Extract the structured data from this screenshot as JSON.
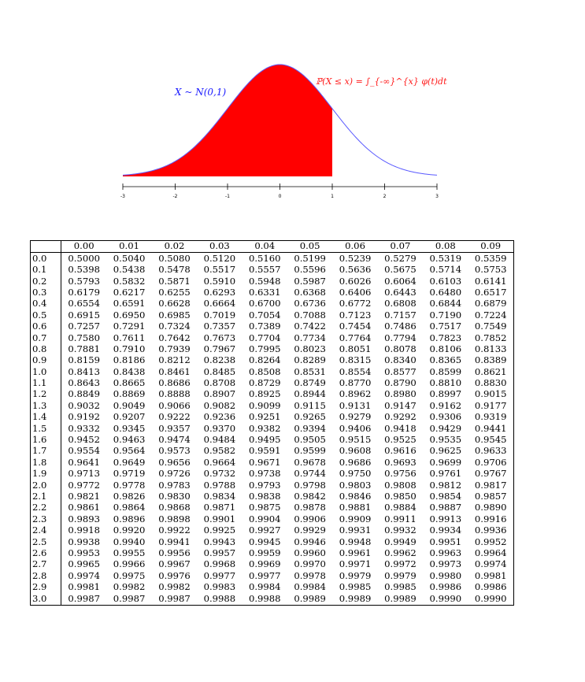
{
  "figure": {
    "left_label": "X ~ N(0,1)",
    "right_label": "ℙ(X ≤ x) = ∫_{-∞}^{x} φ(t)dt",
    "shade_upper": 1,
    "x_ticks": [
      "-3",
      "-2",
      "-1",
      "0",
      "1",
      "2",
      "3"
    ],
    "curve_color": "#5a5aff",
    "fill_color": "#ff0000"
  },
  "table": {
    "columns": [
      "0.00",
      "0.01",
      "0.02",
      "0.03",
      "0.04",
      "0.05",
      "0.06",
      "0.07",
      "0.08",
      "0.09"
    ],
    "rows": [
      {
        "z": "0.0",
        "values": [
          "0.5000",
          "0.5040",
          "0.5080",
          "0.5120",
          "0.5160",
          "0.5199",
          "0.5239",
          "0.5279",
          "0.5319",
          "0.5359"
        ]
      },
      {
        "z": "0.1",
        "values": [
          "0.5398",
          "0.5438",
          "0.5478",
          "0.5517",
          "0.5557",
          "0.5596",
          "0.5636",
          "0.5675",
          "0.5714",
          "0.5753"
        ]
      },
      {
        "z": "0.2",
        "values": [
          "0.5793",
          "0.5832",
          "0.5871",
          "0.5910",
          "0.5948",
          "0.5987",
          "0.6026",
          "0.6064",
          "0.6103",
          "0.6141"
        ]
      },
      {
        "z": "0.3",
        "values": [
          "0.6179",
          "0.6217",
          "0.6255",
          "0.6293",
          "0.6331",
          "0.6368",
          "0.6406",
          "0.6443",
          "0.6480",
          "0.6517"
        ]
      },
      {
        "z": "0.4",
        "values": [
          "0.6554",
          "0.6591",
          "0.6628",
          "0.6664",
          "0.6700",
          "0.6736",
          "0.6772",
          "0.6808",
          "0.6844",
          "0.6879"
        ]
      },
      {
        "z": "0.5",
        "values": [
          "0.6915",
          "0.6950",
          "0.6985",
          "0.7019",
          "0.7054",
          "0.7088",
          "0.7123",
          "0.7157",
          "0.7190",
          "0.7224"
        ]
      },
      {
        "z": "0.6",
        "values": [
          "0.7257",
          "0.7291",
          "0.7324",
          "0.7357",
          "0.7389",
          "0.7422",
          "0.7454",
          "0.7486",
          "0.7517",
          "0.7549"
        ]
      },
      {
        "z": "0.7",
        "values": [
          "0.7580",
          "0.7611",
          "0.7642",
          "0.7673",
          "0.7704",
          "0.7734",
          "0.7764",
          "0.7794",
          "0.7823",
          "0.7852"
        ]
      },
      {
        "z": "0.8",
        "values": [
          "0.7881",
          "0.7910",
          "0.7939",
          "0.7967",
          "0.7995",
          "0.8023",
          "0.8051",
          "0.8078",
          "0.8106",
          "0.8133"
        ]
      },
      {
        "z": "0.9",
        "values": [
          "0.8159",
          "0.8186",
          "0.8212",
          "0.8238",
          "0.8264",
          "0.8289",
          "0.8315",
          "0.8340",
          "0.8365",
          "0.8389"
        ]
      },
      {
        "z": "1.0",
        "values": [
          "0.8413",
          "0.8438",
          "0.8461",
          "0.8485",
          "0.8508",
          "0.8531",
          "0.8554",
          "0.8577",
          "0.8599",
          "0.8621"
        ]
      },
      {
        "z": "1.1",
        "values": [
          "0.8643",
          "0.8665",
          "0.8686",
          "0.8708",
          "0.8729",
          "0.8749",
          "0.8770",
          "0.8790",
          "0.8810",
          "0.8830"
        ]
      },
      {
        "z": "1.2",
        "values": [
          "0.8849",
          "0.8869",
          "0.8888",
          "0.8907",
          "0.8925",
          "0.8944",
          "0.8962",
          "0.8980",
          "0.8997",
          "0.9015"
        ]
      },
      {
        "z": "1.3",
        "values": [
          "0.9032",
          "0.9049",
          "0.9066",
          "0.9082",
          "0.9099",
          "0.9115",
          "0.9131",
          "0.9147",
          "0.9162",
          "0.9177"
        ]
      },
      {
        "z": "1.4",
        "values": [
          "0.9192",
          "0.9207",
          "0.9222",
          "0.9236",
          "0.9251",
          "0.9265",
          "0.9279",
          "0.9292",
          "0.9306",
          "0.9319"
        ]
      },
      {
        "z": "1.5",
        "values": [
          "0.9332",
          "0.9345",
          "0.9357",
          "0.9370",
          "0.9382",
          "0.9394",
          "0.9406",
          "0.9418",
          "0.9429",
          "0.9441"
        ]
      },
      {
        "z": "1.6",
        "values": [
          "0.9452",
          "0.9463",
          "0.9474",
          "0.9484",
          "0.9495",
          "0.9505",
          "0.9515",
          "0.9525",
          "0.9535",
          "0.9545"
        ]
      },
      {
        "z": "1.7",
        "values": [
          "0.9554",
          "0.9564",
          "0.9573",
          "0.9582",
          "0.9591",
          "0.9599",
          "0.9608",
          "0.9616",
          "0.9625",
          "0.9633"
        ]
      },
      {
        "z": "1.8",
        "values": [
          "0.9641",
          "0.9649",
          "0.9656",
          "0.9664",
          "0.9671",
          "0.9678",
          "0.9686",
          "0.9693",
          "0.9699",
          "0.9706"
        ]
      },
      {
        "z": "1.9",
        "values": [
          "0.9713",
          "0.9719",
          "0.9726",
          "0.9732",
          "0.9738",
          "0.9744",
          "0.9750",
          "0.9756",
          "0.9761",
          "0.9767"
        ]
      },
      {
        "z": "2.0",
        "values": [
          "0.9772",
          "0.9778",
          "0.9783",
          "0.9788",
          "0.9793",
          "0.9798",
          "0.9803",
          "0.9808",
          "0.9812",
          "0.9817"
        ]
      },
      {
        "z": "2.1",
        "values": [
          "0.9821",
          "0.9826",
          "0.9830",
          "0.9834",
          "0.9838",
          "0.9842",
          "0.9846",
          "0.9850",
          "0.9854",
          "0.9857"
        ]
      },
      {
        "z": "2.2",
        "values": [
          "0.9861",
          "0.9864",
          "0.9868",
          "0.9871",
          "0.9875",
          "0.9878",
          "0.9881",
          "0.9884",
          "0.9887",
          "0.9890"
        ]
      },
      {
        "z": "2.3",
        "values": [
          "0.9893",
          "0.9896",
          "0.9898",
          "0.9901",
          "0.9904",
          "0.9906",
          "0.9909",
          "0.9911",
          "0.9913",
          "0.9916"
        ]
      },
      {
        "z": "2.4",
        "values": [
          "0.9918",
          "0.9920",
          "0.9922",
          "0.9925",
          "0.9927",
          "0.9929",
          "0.9931",
          "0.9932",
          "0.9934",
          "0.9936"
        ]
      },
      {
        "z": "2.5",
        "values": [
          "0.9938",
          "0.9940",
          "0.9941",
          "0.9943",
          "0.9945",
          "0.9946",
          "0.9948",
          "0.9949",
          "0.9951",
          "0.9952"
        ]
      },
      {
        "z": "2.6",
        "values": [
          "0.9953",
          "0.9955",
          "0.9956",
          "0.9957",
          "0.9959",
          "0.9960",
          "0.9961",
          "0.9962",
          "0.9963",
          "0.9964"
        ]
      },
      {
        "z": "2.7",
        "values": [
          "0.9965",
          "0.9966",
          "0.9967",
          "0.9968",
          "0.9969",
          "0.9970",
          "0.9971",
          "0.9972",
          "0.9973",
          "0.9974"
        ]
      },
      {
        "z": "2.8",
        "values": [
          "0.9974",
          "0.9975",
          "0.9976",
          "0.9977",
          "0.9977",
          "0.9978",
          "0.9979",
          "0.9979",
          "0.9980",
          "0.9981"
        ]
      },
      {
        "z": "2.9",
        "values": [
          "0.9981",
          "0.9982",
          "0.9982",
          "0.9983",
          "0.9984",
          "0.9984",
          "0.9985",
          "0.9985",
          "0.9986",
          "0.9986"
        ]
      },
      {
        "z": "3.0",
        "values": [
          "0.9987",
          "0.9987",
          "0.9987",
          "0.9988",
          "0.9988",
          "0.9989",
          "0.9989",
          "0.9989",
          "0.9990",
          "0.9990"
        ]
      }
    ]
  }
}
